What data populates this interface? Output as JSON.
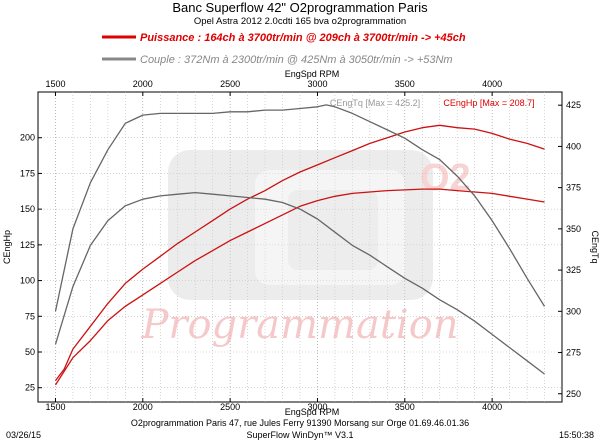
{
  "header": {
    "title": "Banc Superflow 42\" O2programmation Paris",
    "subtitle": "Opel Astra 2012 2.0cdti 165 bva o2programmation",
    "power_legend": "Puissance : 164ch à 3700tr/min @ 209ch à 3700tr/min  -> +45ch",
    "torque_legend": "Couple :  372Nm à 2300tr/min @ 425Nm à 3050tr/min -> +53Nm"
  },
  "footer": {
    "address": "O2programmation Paris 47, rue Jules Ferry 91390 Morsang sur Orge 01.69.46.01.36",
    "software": "SuperFlow WinDyn™ V3.1",
    "date": "03/26/15",
    "time": "15:50:38"
  },
  "watermark": {
    "text": "Programmation",
    "logo": "O2"
  },
  "colors": {
    "power_tuned": "#cc1111",
    "power_stock": "#cc1111",
    "torque_tuned": "#666666",
    "torque_stock": "#666666",
    "power_legend": "#e00000",
    "torque_legend": "#888888"
  },
  "chart_data": {
    "type": "line",
    "title": "Banc Superflow 42\" O2programmation Paris",
    "xlabel": "EngSpd RPM",
    "ylabel_left": "CEngHp",
    "ylabel_right": "CEngTq",
    "xlim": [
      1400,
      4400
    ],
    "ylim_left": [
      15,
      232
    ],
    "ylim_right": [
      245,
      433
    ],
    "x_ticks": [
      1500,
      2000,
      2500,
      3000,
      3500,
      4000
    ],
    "y_left_ticks": [
      25,
      50,
      75,
      100,
      125,
      150,
      175,
      200
    ],
    "y_right_ticks": [
      250,
      275,
      300,
      325,
      350,
      375,
      400,
      425
    ],
    "grid": true,
    "annotations": {
      "torque_max": "CEngTq [Max = 425.2]",
      "power_max": "CEngHp [Max = 208.7]"
    },
    "series": [
      {
        "name": "CEngHp",
        "axis": "left",
        "x": [
          1500,
          1550,
          1600,
          1700,
          1800,
          1900,
          2000,
          2100,
          2200,
          2300,
          2400,
          2500,
          2600,
          2700,
          2800,
          2900,
          3000,
          3100,
          3200,
          3300,
          3400,
          3500,
          3600,
          3700,
          3800,
          3900,
          4000,
          4100,
          4200,
          4300
        ],
        "values": [
          30,
          38,
          52,
          68,
          84,
          98,
          108,
          117,
          126,
          134,
          142,
          150,
          157,
          163,
          170,
          176,
          181,
          186,
          191,
          196,
          200,
          204,
          207,
          208.7,
          207,
          206,
          203,
          199,
          196,
          192
        ]
      },
      {
        "name": "CEngHp (stock)",
        "axis": "left",
        "x": [
          1500,
          1600,
          1700,
          1800,
          1900,
          2000,
          2100,
          2200,
          2300,
          2400,
          2500,
          2600,
          2700,
          2800,
          2900,
          3000,
          3100,
          3200,
          3300,
          3400,
          3500,
          3600,
          3700,
          3800,
          3900,
          4000,
          4100,
          4200,
          4300
        ],
        "values": [
          27,
          46,
          58,
          72,
          82,
          90,
          98,
          106,
          114,
          121,
          128,
          134,
          140,
          146,
          152,
          156,
          159,
          161,
          162,
          163,
          163.5,
          164,
          164,
          163,
          162,
          161,
          159,
          157,
          155
        ]
      },
      {
        "name": "CEngTq",
        "axis": "right",
        "x": [
          1500,
          1600,
          1700,
          1800,
          1900,
          2000,
          2100,
          2200,
          2300,
          2400,
          2500,
          2600,
          2700,
          2800,
          2900,
          3000,
          3050,
          3100,
          3200,
          3300,
          3400,
          3500,
          3600,
          3700,
          3800,
          3900,
          4000,
          4100,
          4200,
          4300
        ],
        "values": [
          300,
          350,
          378,
          398,
          414,
          419,
          420,
          420,
          420,
          420,
          421,
          421,
          422,
          422,
          423,
          424,
          425.2,
          424,
          420,
          415,
          410,
          405,
          398,
          392,
          382,
          370,
          355,
          338,
          320,
          303
        ]
      },
      {
        "name": "CEngTq (stock)",
        "axis": "right",
        "x": [
          1500,
          1600,
          1700,
          1800,
          1900,
          2000,
          2100,
          2200,
          2300,
          2400,
          2500,
          2600,
          2700,
          2800,
          2900,
          3000,
          3100,
          3200,
          3300,
          3400,
          3500,
          3600,
          3700,
          3800,
          3900,
          4000,
          4100,
          4200,
          4300
        ],
        "values": [
          280,
          315,
          340,
          355,
          364,
          368,
          370,
          371,
          372,
          371,
          370,
          369,
          368,
          366,
          362,
          356,
          348,
          340,
          334,
          327,
          320,
          314,
          307,
          301,
          294,
          286,
          278,
          270,
          262
        ]
      }
    ]
  }
}
